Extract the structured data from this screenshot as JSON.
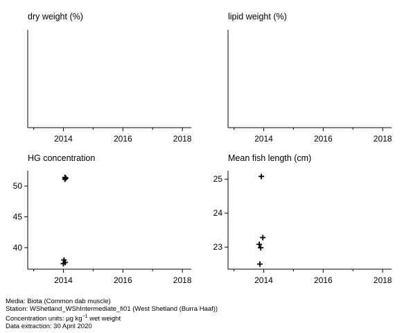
{
  "chart_data": [
    {
      "type": "scatter",
      "title": "dry weight (%)",
      "x_ticks": [
        2014,
        2016,
        2018
      ],
      "xlim": [
        2012.8,
        2018.3
      ],
      "y_ticks": [],
      "ylim": [
        0,
        1
      ],
      "points": []
    },
    {
      "type": "scatter",
      "title": "lipid weight (%)",
      "x_ticks": [
        2014,
        2016,
        2018
      ],
      "xlim": [
        2012.8,
        2018.3
      ],
      "y_ticks": [],
      "ylim": [
        0,
        1
      ],
      "points": []
    },
    {
      "type": "scatter",
      "title": "HG concentration",
      "x_ticks": [
        2014,
        2016,
        2018
      ],
      "xlim": [
        2012.8,
        2018.3
      ],
      "y_ticks": [
        40,
        45,
        50
      ],
      "ylim": [
        36.5,
        52.5
      ],
      "points": [
        {
          "x": 2014.05,
          "y": 51.4
        },
        {
          "x": 2014.08,
          "y": 51.3
        },
        {
          "x": 2014.05,
          "y": 51.1
        },
        {
          "x": 2014.02,
          "y": 38.0
        },
        {
          "x": 2014.06,
          "y": 37.6
        },
        {
          "x": 2014.0,
          "y": 37.4
        }
      ]
    },
    {
      "type": "scatter",
      "title": "Mean fish length (cm)",
      "x_ticks": [
        2014,
        2016,
        2018
      ],
      "xlim": [
        2012.8,
        2018.3
      ],
      "y_ticks": [
        23,
        24,
        25
      ],
      "ylim": [
        22.35,
        25.25
      ],
      "points": [
        {
          "x": 2013.92,
          "y": 25.08
        },
        {
          "x": 2013.97,
          "y": 23.28
        },
        {
          "x": 2013.85,
          "y": 23.08
        },
        {
          "x": 2013.9,
          "y": 22.98
        },
        {
          "x": 2013.87,
          "y": 22.5
        }
      ]
    }
  ],
  "footer": {
    "media": "Media: Biota (Common dab muscle)",
    "station": "Station: WShetland_WShIntermediate_fi01 (West Shetland (Burra Haaf))",
    "units_prefix": "Concentration units:  µg kg",
    "units_sup": "−1",
    "units_suffix": " wet weight",
    "extraction": "Data extraction: 30 April 2020"
  },
  "colors": {
    "axis": "#000000",
    "marker": "#000000",
    "background": "#ffffff"
  }
}
